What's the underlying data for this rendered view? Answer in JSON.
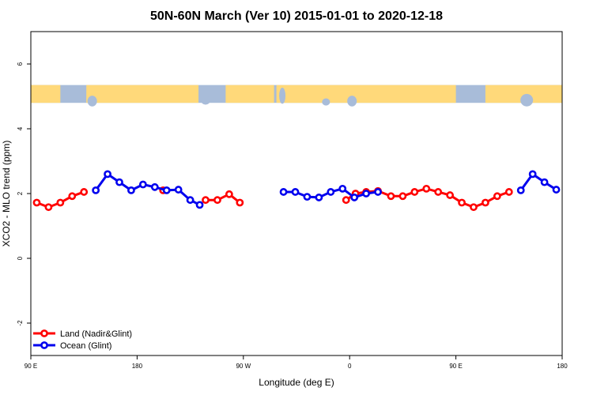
{
  "chart_data": {
    "type": "line",
    "title": "50N-60N March (Ver 10)   2015-01-01 to 2020-12-18",
    "xlabel": "Longitude (deg E)",
    "ylabel": "XCO2 - MLO trend (ppm)",
    "xlim": [
      90,
      540
    ],
    "ylim": [
      -3,
      7
    ],
    "x_ticks": [
      {
        "value": 90,
        "label": "90 E"
      },
      {
        "value": 180,
        "label": "180"
      },
      {
        "value": 270,
        "label": "90 W"
      },
      {
        "value": 360,
        "label": "0"
      },
      {
        "value": 450,
        "label": "90 E"
      },
      {
        "value": 540,
        "label": "180"
      }
    ],
    "y_ticks": [
      {
        "value": -2,
        "label": "-2"
      },
      {
        "value": 0,
        "label": "0"
      },
      {
        "value": 2,
        "label": "2"
      },
      {
        "value": 4,
        "label": "4"
      },
      {
        "value": 6,
        "label": "6"
      }
    ],
    "legend_position": "bottom-left",
    "series": [
      {
        "name": "Land (Nadir&Glint)",
        "color": "#ff0000",
        "segments": [
          [
            [
              95,
              1.72
            ],
            [
              105,
              1.58
            ],
            [
              115,
              1.72
            ],
            [
              125,
              1.92
            ],
            [
              135,
              2.05
            ]
          ],
          [
            [
              202,
              2.1
            ]
          ],
          [
            [
              238,
              1.8
            ],
            [
              248,
              1.8
            ],
            [
              258,
              1.98
            ],
            [
              267,
              1.72
            ]
          ],
          [
            [
              357,
              1.8
            ],
            [
              365,
              2.0
            ],
            [
              374,
              2.05
            ],
            [
              384,
              2.08
            ],
            [
              395,
              1.92
            ],
            [
              405,
              1.92
            ],
            [
              415,
              2.05
            ],
            [
              425,
              2.15
            ],
            [
              435,
              2.05
            ],
            [
              445,
              1.95
            ],
            [
              455,
              1.72
            ],
            [
              465,
              1.58
            ],
            [
              475,
              1.72
            ],
            [
              485,
              1.92
            ],
            [
              495,
              2.05
            ]
          ]
        ]
      },
      {
        "name": "Ocean (Glint)",
        "color": "#0000ee",
        "segments": [
          [
            [
              145,
              2.1
            ],
            [
              155,
              2.6
            ],
            [
              165,
              2.35
            ],
            [
              175,
              2.1
            ],
            [
              185,
              2.28
            ],
            [
              195,
              2.2
            ],
            [
              205,
              2.1
            ],
            [
              215,
              2.12
            ],
            [
              225,
              1.8
            ],
            [
              233,
              1.65
            ]
          ],
          [
            [
              304,
              2.05
            ],
            [
              314,
              2.05
            ],
            [
              324,
              1.9
            ],
            [
              334,
              1.88
            ],
            [
              344,
              2.05
            ],
            [
              354,
              2.15
            ],
            [
              364,
              1.88
            ],
            [
              374,
              2.0
            ],
            [
              384,
              2.05
            ]
          ],
          [
            [
              505,
              2.1
            ],
            [
              515,
              2.6
            ],
            [
              525,
              2.35
            ],
            [
              535,
              2.12
            ]
          ]
        ]
      }
    ]
  },
  "map_strip": {
    "y_range": [
      4.8,
      5.35
    ],
    "ocean_color": "#a8bcd9",
    "land_color": "#ffd97a"
  }
}
